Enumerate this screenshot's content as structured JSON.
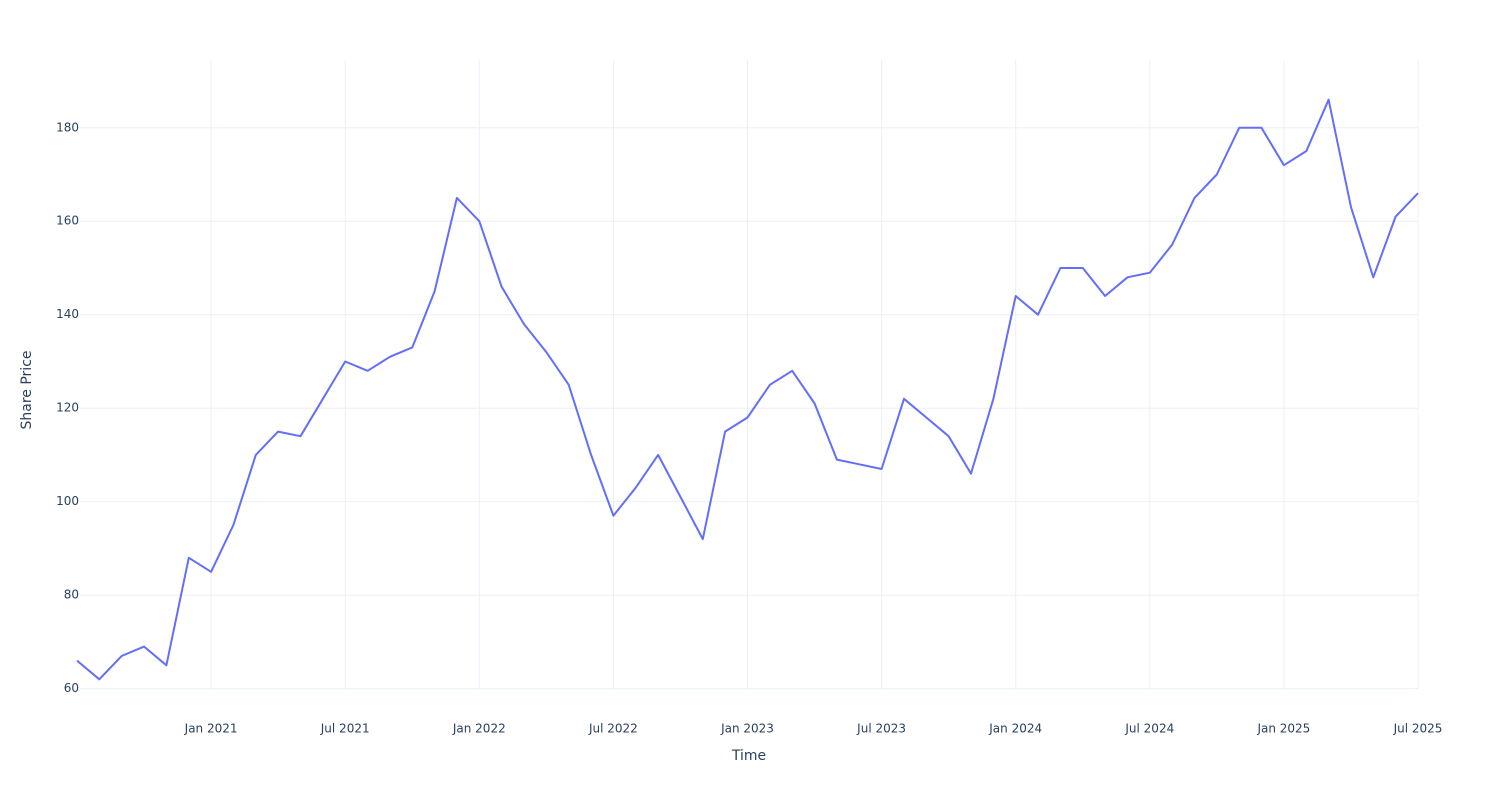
{
  "chart_data": {
    "type": "line",
    "x_title": "Time",
    "y_title": "Share Price",
    "x": [
      "2020-07",
      "2020-08",
      "2020-09",
      "2020-10",
      "2020-11",
      "2020-12",
      "2021-01",
      "2021-02",
      "2021-03",
      "2021-04",
      "2021-05",
      "2021-06",
      "2021-07",
      "2021-08",
      "2021-09",
      "2021-10",
      "2021-11",
      "2021-12",
      "2022-01",
      "2022-02",
      "2022-03",
      "2022-04",
      "2022-05",
      "2022-06",
      "2022-07",
      "2022-08",
      "2022-09",
      "2022-10",
      "2022-11",
      "2022-12",
      "2023-01",
      "2023-02",
      "2023-03",
      "2023-04",
      "2023-05",
      "2023-06",
      "2023-07",
      "2023-08",
      "2023-09",
      "2023-10",
      "2023-11",
      "2023-12",
      "2024-01",
      "2024-02",
      "2024-03",
      "2024-04",
      "2024-05",
      "2024-06",
      "2024-07",
      "2024-08",
      "2024-09",
      "2024-10",
      "2024-11",
      "2024-12",
      "2025-01",
      "2025-02",
      "2025-03",
      "2025-04",
      "2025-05",
      "2025-06",
      "2025-07"
    ],
    "series": [
      {
        "color": "#636efa",
        "values": [
          66,
          62,
          67,
          69,
          65,
          88,
          85,
          95,
          110,
          115,
          114,
          122,
          130,
          128,
          131,
          133,
          145,
          165,
          160,
          146,
          138,
          132,
          125,
          110,
          97,
          103,
          110,
          101,
          92,
          115,
          118,
          125,
          128,
          121,
          109,
          108,
          107,
          122,
          118,
          114,
          106,
          122,
          144,
          140,
          150,
          150,
          144,
          148,
          149,
          155,
          165,
          170,
          180,
          180,
          172,
          175,
          186,
          163,
          148,
          161,
          166
        ]
      }
    ],
    "xlim": [
      "2020-07",
      "2025-07"
    ],
    "xticks": [
      {
        "value": "2021-01",
        "label": "Jan 2021"
      },
      {
        "value": "2021-07",
        "label": "Jul 2021"
      },
      {
        "value": "2022-01",
        "label": "Jan 2022"
      },
      {
        "value": "2022-07",
        "label": "Jul 2022"
      },
      {
        "value": "2023-01",
        "label": "Jan 2023"
      },
      {
        "value": "2023-07",
        "label": "Jul 2023"
      },
      {
        "value": "2024-01",
        "label": "Jan 2024"
      },
      {
        "value": "2024-07",
        "label": "Jul 2024"
      },
      {
        "value": "2025-01",
        "label": "Jan 2025"
      },
      {
        "value": "2025-07",
        "label": "Jul 2025"
      }
    ],
    "ylim": [
      53.5,
      194.5
    ],
    "yticks": [
      60,
      80,
      100,
      120,
      140,
      160,
      180
    ],
    "grid": true
  }
}
